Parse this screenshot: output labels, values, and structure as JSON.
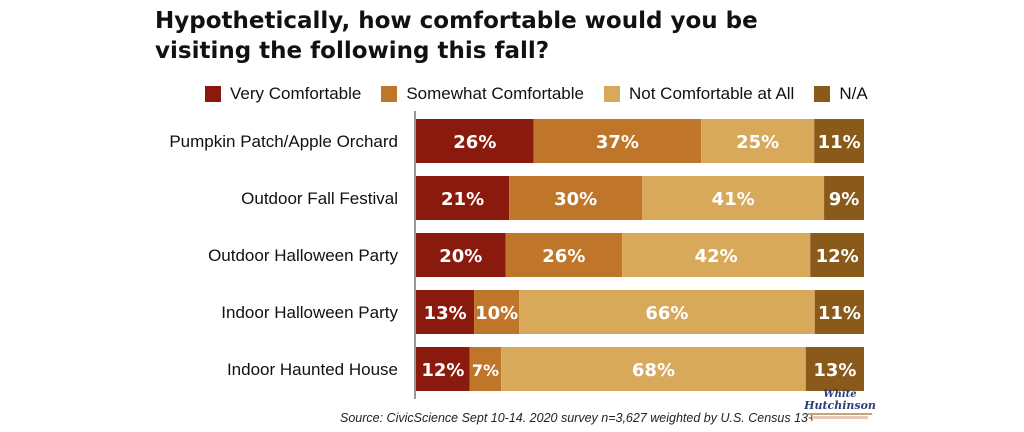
{
  "title": "Hypothetically, how comfortable would you be visiting the following this fall?",
  "source": "Source: CivicScience Sept 10-14. 2020 survey n=3,627 weighted by U.S. Census 13+",
  "logo": {
    "line1": "White",
    "line2": "Hutchinson"
  },
  "colors": {
    "very": "#8b1a0e",
    "somewhat": "#c0762a",
    "not": "#d8a95a",
    "na": "#8a5a1a"
  },
  "legend": [
    {
      "label": "Very Comfortable",
      "color_key": "very"
    },
    {
      "label": "Somewhat Comfortable",
      "color_key": "somewhat"
    },
    {
      "label": "Not Comfortable at All",
      "color_key": "not"
    },
    {
      "label": "N/A",
      "color_key": "na"
    }
  ],
  "chart_data": {
    "type": "bar",
    "orientation": "horizontal-stacked",
    "categories": [
      "Pumpkin Patch/Apple Orchard",
      "Outdoor Fall Festival",
      "Outdoor Halloween Party",
      "Indoor Halloween Party",
      "Indoor Haunted House"
    ],
    "series": [
      {
        "name": "Very Comfortable",
        "color_key": "very",
        "values": [
          26,
          21,
          20,
          13,
          12
        ]
      },
      {
        "name": "Somewhat Comfortable",
        "color_key": "somewhat",
        "values": [
          37,
          30,
          26,
          10,
          7
        ]
      },
      {
        "name": "Not Comfortable at All",
        "color_key": "not",
        "values": [
          25,
          41,
          42,
          66,
          68
        ]
      },
      {
        "name": "N/A",
        "color_key": "na",
        "values": [
          11,
          9,
          12,
          11,
          13
        ]
      }
    ],
    "value_suffix": "%",
    "legend_position": "top",
    "grid": false
  }
}
